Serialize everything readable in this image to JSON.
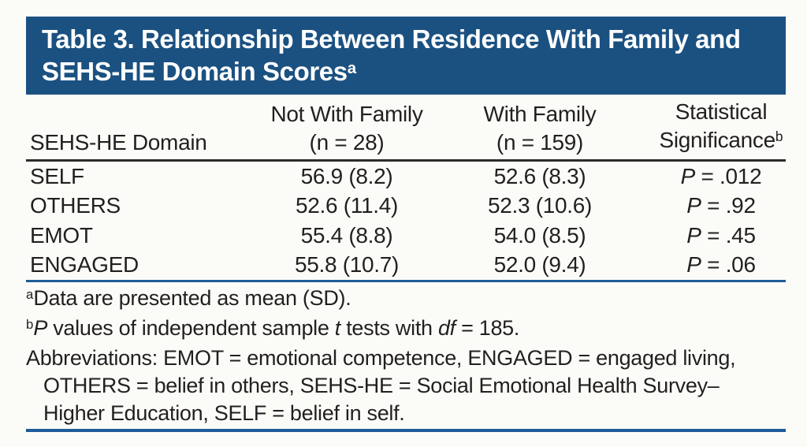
{
  "title": {
    "line1": "Table 3. Relationship Between Residence With Family and",
    "line2": "SEHS-HE Domain Scores",
    "footnote_marker": "a"
  },
  "colors": {
    "banner_blue": "#1b5181",
    "rule_blue": "#1e5c99",
    "header_rule_dark": "#2e2b29",
    "text": "#231f20",
    "background": "#fbfcf8"
  },
  "table": {
    "headers": {
      "domain": "SEHS-HE Domain",
      "col2_line1": "Not With Family",
      "col2_line2": "(n = 28)",
      "col3_line1": "With Family",
      "col3_line2": "(n = 159)",
      "col4_line1": "Statistical",
      "col4_line2": "Significance",
      "col4_marker": "b"
    },
    "p_symbol": "P",
    "eq": " = ",
    "rows": [
      {
        "domain": "SELF",
        "not_with_family": "56.9 (8.2)",
        "with_family": "52.6 (8.3)",
        "p": ".012"
      },
      {
        "domain": "OTHERS",
        "not_with_family": "52.6 (11.4)",
        "with_family": "52.3 (10.6)",
        "p": ".92"
      },
      {
        "domain": "EMOT",
        "not_with_family": "55.4 (8.8)",
        "with_family": "54.0 (8.5)",
        "p": ".45"
      },
      {
        "domain": "ENGAGED",
        "not_with_family": "55.8 (10.7)",
        "with_family": "52.0 (9.4)",
        "p": ".06"
      }
    ]
  },
  "footnotes": {
    "a_marker": "a",
    "a_text": "Data are presented as mean (SD).",
    "b_marker": "b",
    "b_p": "P",
    "b_text1": " values of independent sample ",
    "b_t": "t",
    "b_text2": " tests with ",
    "b_df": "df",
    "b_text3": " = 185.",
    "abbrev_line1": "Abbreviations: EMOT = emotional competence, ENGAGED = engaged living,",
    "abbrev_line2": "OTHERS = belief in others, SEHS-HE = Social Emotional Health Survey–",
    "abbrev_line3": "Higher Education, SELF = belief in self."
  }
}
